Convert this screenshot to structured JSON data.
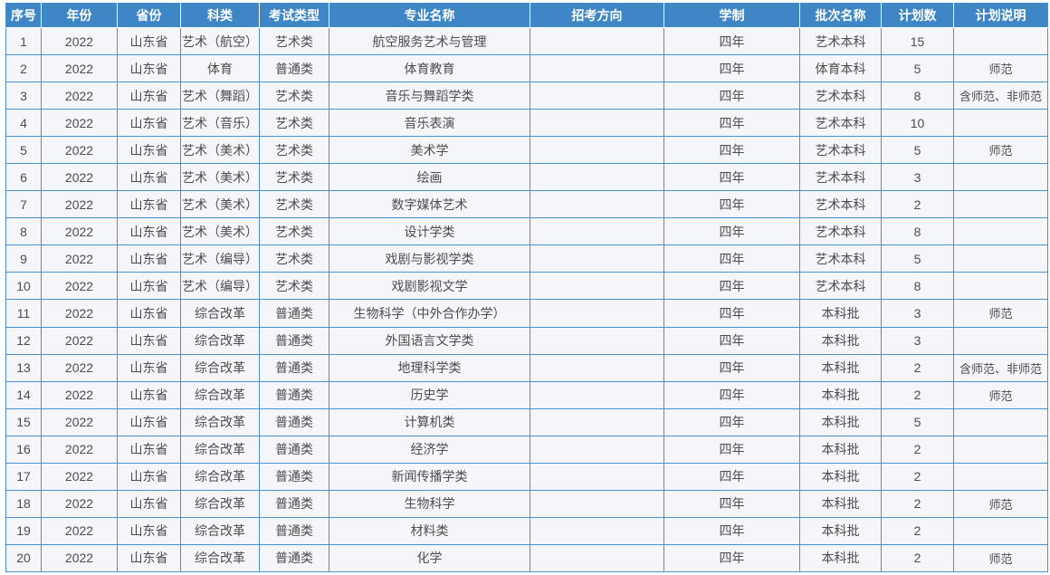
{
  "colors": {
    "header_background": "#3e86c5",
    "header_text": "#ffffff",
    "cell_background": "#f5f6fa",
    "cell_text": "#4c4c4c",
    "grid_border": "#4a91cf",
    "page_background": "#ffffff"
  },
  "table": {
    "columns": [
      {
        "key": "index",
        "label": "序号"
      },
      {
        "key": "year",
        "label": "年份"
      },
      {
        "key": "province",
        "label": "省份"
      },
      {
        "key": "category",
        "label": "科类"
      },
      {
        "key": "exam_type",
        "label": "考试类型"
      },
      {
        "key": "major_name",
        "label": "专业名称"
      },
      {
        "key": "direction",
        "label": "招考方向"
      },
      {
        "key": "duration",
        "label": "学制"
      },
      {
        "key": "batch_name",
        "label": "批次名称"
      },
      {
        "key": "plan_count",
        "label": "计划数"
      },
      {
        "key": "plan_note",
        "label": "计划说明"
      }
    ],
    "rows": [
      {
        "index": "1",
        "year": "2022",
        "province": "山东省",
        "category": "艺术（航空）",
        "exam_type": "艺术类",
        "major_name": "航空服务艺术与管理",
        "direction": "",
        "duration": "四年",
        "batch_name": "艺术本科",
        "plan_count": "15",
        "plan_note": ""
      },
      {
        "index": "2",
        "year": "2022",
        "province": "山东省",
        "category": "体育",
        "exam_type": "普通类",
        "major_name": "体育教育",
        "direction": "",
        "duration": "四年",
        "batch_name": "体育本科",
        "plan_count": "5",
        "plan_note": "师范"
      },
      {
        "index": "3",
        "year": "2022",
        "province": "山东省",
        "category": "艺术（舞蹈）",
        "exam_type": "艺术类",
        "major_name": "音乐与舞蹈学类",
        "direction": "",
        "duration": "四年",
        "batch_name": "艺术本科",
        "plan_count": "8",
        "plan_note": "含师范、非师范"
      },
      {
        "index": "4",
        "year": "2022",
        "province": "山东省",
        "category": "艺术（音乐）",
        "exam_type": "艺术类",
        "major_name": "音乐表演",
        "direction": "",
        "duration": "四年",
        "batch_name": "艺术本科",
        "plan_count": "10",
        "plan_note": ""
      },
      {
        "index": "5",
        "year": "2022",
        "province": "山东省",
        "category": "艺术（美术）",
        "exam_type": "艺术类",
        "major_name": "美术学",
        "direction": "",
        "duration": "四年",
        "batch_name": "艺术本科",
        "plan_count": "5",
        "plan_note": "师范"
      },
      {
        "index": "6",
        "year": "2022",
        "province": "山东省",
        "category": "艺术（美术）",
        "exam_type": "艺术类",
        "major_name": "绘画",
        "direction": "",
        "duration": "四年",
        "batch_name": "艺术本科",
        "plan_count": "3",
        "plan_note": ""
      },
      {
        "index": "7",
        "year": "2022",
        "province": "山东省",
        "category": "艺术（美术）",
        "exam_type": "艺术类",
        "major_name": "数字媒体艺术",
        "direction": "",
        "duration": "四年",
        "batch_name": "艺术本科",
        "plan_count": "2",
        "plan_note": ""
      },
      {
        "index": "8",
        "year": "2022",
        "province": "山东省",
        "category": "艺术（美术）",
        "exam_type": "艺术类",
        "major_name": "设计学类",
        "direction": "",
        "duration": "四年",
        "batch_name": "艺术本科",
        "plan_count": "8",
        "plan_note": ""
      },
      {
        "index": "9",
        "year": "2022",
        "province": "山东省",
        "category": "艺术（编导）",
        "exam_type": "艺术类",
        "major_name": "戏剧与影视学类",
        "direction": "",
        "duration": "四年",
        "batch_name": "艺术本科",
        "plan_count": "5",
        "plan_note": ""
      },
      {
        "index": "10",
        "year": "2022",
        "province": "山东省",
        "category": "艺术（编导）",
        "exam_type": "艺术类",
        "major_name": "戏剧影视文学",
        "direction": "",
        "duration": "四年",
        "batch_name": "艺术本科",
        "plan_count": "8",
        "plan_note": ""
      },
      {
        "index": "11",
        "year": "2022",
        "province": "山东省",
        "category": "综合改革",
        "exam_type": "普通类",
        "major_name": "生物科学（中外合作办学）",
        "direction": "",
        "duration": "四年",
        "batch_name": "本科批",
        "plan_count": "3",
        "plan_note": "师范"
      },
      {
        "index": "12",
        "year": "2022",
        "province": "山东省",
        "category": "综合改革",
        "exam_type": "普通类",
        "major_name": "外国语言文学类",
        "direction": "",
        "duration": "四年",
        "batch_name": "本科批",
        "plan_count": "3",
        "plan_note": ""
      },
      {
        "index": "13",
        "year": "2022",
        "province": "山东省",
        "category": "综合改革",
        "exam_type": "普通类",
        "major_name": "地理科学类",
        "direction": "",
        "duration": "四年",
        "batch_name": "本科批",
        "plan_count": "2",
        "plan_note": "含师范、非师范"
      },
      {
        "index": "14",
        "year": "2022",
        "province": "山东省",
        "category": "综合改革",
        "exam_type": "普通类",
        "major_name": "历史学",
        "direction": "",
        "duration": "四年",
        "batch_name": "本科批",
        "plan_count": "2",
        "plan_note": "师范"
      },
      {
        "index": "15",
        "year": "2022",
        "province": "山东省",
        "category": "综合改革",
        "exam_type": "普通类",
        "major_name": "计算机类",
        "direction": "",
        "duration": "四年",
        "batch_name": "本科批",
        "plan_count": "5",
        "plan_note": ""
      },
      {
        "index": "16",
        "year": "2022",
        "province": "山东省",
        "category": "综合改革",
        "exam_type": "普通类",
        "major_name": "经济学",
        "direction": "",
        "duration": "四年",
        "batch_name": "本科批",
        "plan_count": "2",
        "plan_note": ""
      },
      {
        "index": "17",
        "year": "2022",
        "province": "山东省",
        "category": "综合改革",
        "exam_type": "普通类",
        "major_name": "新闻传播学类",
        "direction": "",
        "duration": "四年",
        "batch_name": "本科批",
        "plan_count": "2",
        "plan_note": ""
      },
      {
        "index": "18",
        "year": "2022",
        "province": "山东省",
        "category": "综合改革",
        "exam_type": "普通类",
        "major_name": "生物科学",
        "direction": "",
        "duration": "四年",
        "batch_name": "本科批",
        "plan_count": "2",
        "plan_note": "师范"
      },
      {
        "index": "19",
        "year": "2022",
        "province": "山东省",
        "category": "综合改革",
        "exam_type": "普通类",
        "major_name": "材料类",
        "direction": "",
        "duration": "四年",
        "batch_name": "本科批",
        "plan_count": "2",
        "plan_note": ""
      },
      {
        "index": "20",
        "year": "2022",
        "province": "山东省",
        "category": "综合改革",
        "exam_type": "普通类",
        "major_name": "化学",
        "direction": "",
        "duration": "四年",
        "batch_name": "本科批",
        "plan_count": "2",
        "plan_note": "师范"
      }
    ]
  }
}
